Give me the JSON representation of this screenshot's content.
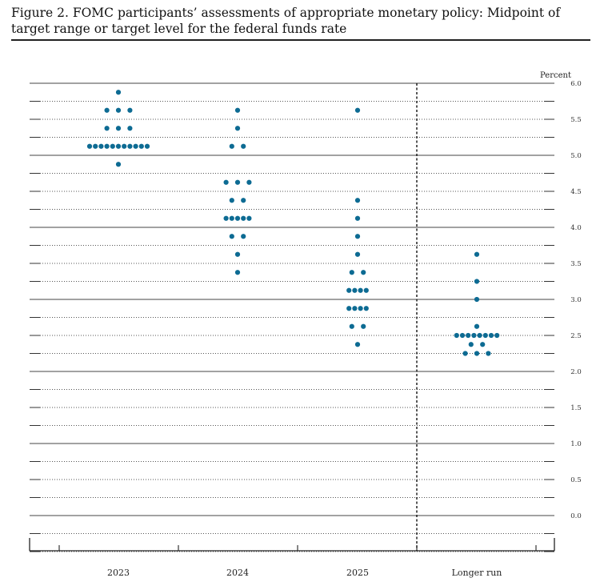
{
  "figure": {
    "title": "Figure 2.  FOMC participants’ assessments of appropriate monetary policy:  Midpoint of target range or target level for the federal funds rate"
  },
  "chart_data": {
    "type": "scatter",
    "chart_subtype": "dot-plot",
    "ylabel": "Percent",
    "ylim": [
      -0.5,
      6.0
    ],
    "ytick_step": 0.25,
    "ytick_labels": [
      "0.0",
      "0.5",
      "1.0",
      "1.5",
      "2.0",
      "2.5",
      "3.0",
      "3.5",
      "4.0",
      "4.5",
      "5.0",
      "5.5",
      "6.0"
    ],
    "grid": "dotted horizontal lines at every 0.25; solid at whole percents",
    "categories": [
      "2023",
      "2024",
      "2025",
      "Longer run"
    ],
    "dot_color": "#0d6b93",
    "series": [
      {
        "category": "2023",
        "points": [
          {
            "y": 5.875,
            "count": 1
          },
          {
            "y": 5.625,
            "count": 3
          },
          {
            "y": 5.375,
            "count": 3
          },
          {
            "y": 5.125,
            "count": 11
          },
          {
            "y": 4.875,
            "count": 1
          }
        ]
      },
      {
        "category": "2024",
        "points": [
          {
            "y": 5.625,
            "count": 1
          },
          {
            "y": 5.375,
            "count": 1
          },
          {
            "y": 5.125,
            "count": 2
          },
          {
            "y": 4.625,
            "count": 3
          },
          {
            "y": 4.375,
            "count": 2
          },
          {
            "y": 4.125,
            "count": 5
          },
          {
            "y": 3.875,
            "count": 2
          },
          {
            "y": 3.625,
            "count": 1
          },
          {
            "y": 3.375,
            "count": 1
          }
        ]
      },
      {
        "category": "2025",
        "points": [
          {
            "y": 5.625,
            "count": 1
          },
          {
            "y": 4.375,
            "count": 1
          },
          {
            "y": 4.125,
            "count": 1
          },
          {
            "y": 3.875,
            "count": 1
          },
          {
            "y": 3.625,
            "count": 1
          },
          {
            "y": 3.375,
            "count": 2
          },
          {
            "y": 3.125,
            "count": 4
          },
          {
            "y": 2.875,
            "count": 4
          },
          {
            "y": 2.625,
            "count": 2
          },
          {
            "y": 2.375,
            "count": 1
          }
        ]
      },
      {
        "category": "Longer run",
        "points": [
          {
            "y": 3.625,
            "count": 1
          },
          {
            "y": 3.25,
            "count": 1
          },
          {
            "y": 3.0,
            "count": 1
          },
          {
            "y": 2.625,
            "count": 1
          },
          {
            "y": 2.5,
            "count": 8
          },
          {
            "y": 2.375,
            "count": 2
          },
          {
            "y": 2.25,
            "count": 3
          }
        ]
      }
    ]
  }
}
